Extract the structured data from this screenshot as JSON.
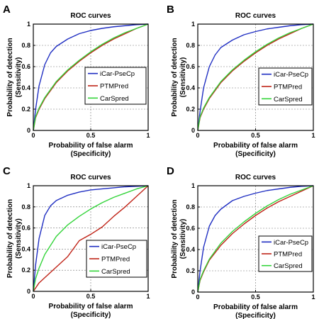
{
  "colors": {
    "iCar-PseCp": "#1f2ec2",
    "PTMPred": "#c02418",
    "CarSpred": "#33d43a"
  },
  "chart_data": [
    {
      "panel": "A",
      "type": "line",
      "title": "ROC curves",
      "xlabel": [
        "Probability of false alarm",
        "(Specificity)"
      ],
      "ylabel": [
        "Probability of detection",
        "(Sensitivity)"
      ],
      "xlim": [
        0,
        1
      ],
      "ylim": [
        0,
        1
      ],
      "xticks": [
        "0",
        "0.5",
        "1"
      ],
      "yticks": [
        "0",
        "0.2",
        "0.4",
        "0.6",
        "0.8",
        "1"
      ],
      "grid": true,
      "legend": "middle-right",
      "series": [
        {
          "name": "iCar-PseCp",
          "x": [
            0,
            0.02,
            0.05,
            0.1,
            0.15,
            0.2,
            0.3,
            0.4,
            0.5,
            0.6,
            0.7,
            0.8,
            0.9,
            1
          ],
          "y": [
            0,
            0.2,
            0.42,
            0.62,
            0.73,
            0.79,
            0.86,
            0.91,
            0.94,
            0.96,
            0.975,
            0.985,
            0.995,
            1
          ]
        },
        {
          "name": "PTMPred",
          "x": [
            0,
            0.02,
            0.05,
            0.1,
            0.2,
            0.3,
            0.4,
            0.5,
            0.6,
            0.7,
            0.8,
            0.9,
            1
          ],
          "y": [
            0,
            0.12,
            0.2,
            0.3,
            0.45,
            0.56,
            0.65,
            0.73,
            0.8,
            0.86,
            0.91,
            0.96,
            1
          ]
        },
        {
          "name": "CarSpred",
          "x": [
            0,
            0.02,
            0.05,
            0.1,
            0.2,
            0.3,
            0.4,
            0.5,
            0.6,
            0.7,
            0.8,
            0.9,
            1
          ],
          "y": [
            0,
            0.13,
            0.21,
            0.31,
            0.46,
            0.57,
            0.66,
            0.74,
            0.81,
            0.87,
            0.92,
            0.96,
            1
          ]
        }
      ]
    },
    {
      "panel": "B",
      "type": "line",
      "title": "ROC curves",
      "xlabel": [
        "Probability of false alarm",
        "(Specificity)"
      ],
      "ylabel": [
        "Probability of detection",
        "(Sensitivity)"
      ],
      "xlim": [
        0,
        1
      ],
      "ylim": [
        0,
        1
      ],
      "xticks": [
        "0",
        "0.5",
        "1"
      ],
      "yticks": [
        "0",
        "0.2",
        "0.4",
        "0.6",
        "0.8",
        "1"
      ],
      "grid": true,
      "legend": "middle-right",
      "series": [
        {
          "name": "iCar-PseCp",
          "x": [
            0,
            0.02,
            0.05,
            0.1,
            0.15,
            0.2,
            0.3,
            0.4,
            0.5,
            0.6,
            0.7,
            0.8,
            0.9,
            1
          ],
          "y": [
            0,
            0.18,
            0.4,
            0.6,
            0.71,
            0.78,
            0.85,
            0.9,
            0.93,
            0.955,
            0.97,
            0.985,
            0.995,
            1
          ]
        },
        {
          "name": "PTMPred",
          "x": [
            0,
            0.02,
            0.05,
            0.1,
            0.2,
            0.3,
            0.4,
            0.5,
            0.6,
            0.7,
            0.8,
            0.9,
            1
          ],
          "y": [
            0,
            0.12,
            0.2,
            0.3,
            0.45,
            0.56,
            0.65,
            0.73,
            0.8,
            0.86,
            0.91,
            0.96,
            1
          ]
        },
        {
          "name": "CarSpred",
          "x": [
            0,
            0.02,
            0.05,
            0.1,
            0.2,
            0.3,
            0.4,
            0.5,
            0.6,
            0.7,
            0.8,
            0.9,
            1
          ],
          "y": [
            0,
            0.13,
            0.21,
            0.31,
            0.46,
            0.57,
            0.66,
            0.74,
            0.81,
            0.87,
            0.92,
            0.96,
            1
          ]
        }
      ]
    },
    {
      "panel": "C",
      "type": "line",
      "title": "ROC curves",
      "xlabel": [
        "Probability of false alarm",
        "(Specificity)"
      ],
      "ylabel": [
        "Probability of detection",
        "(Sensitivity)"
      ],
      "xlim": [
        0,
        1
      ],
      "ylim": [
        0,
        1
      ],
      "xticks": [
        "0",
        "0.5",
        "1"
      ],
      "yticks": [
        "0",
        "0.2",
        "0.4",
        "0.6",
        "0.8",
        "1"
      ],
      "grid": true,
      "legend": "bottom-right",
      "series": [
        {
          "name": "iCar-PseCp",
          "x": [
            0,
            0.02,
            0.05,
            0.1,
            0.15,
            0.2,
            0.3,
            0.4,
            0.5,
            0.6,
            0.7,
            0.8,
            0.9,
            1
          ],
          "y": [
            0,
            0.25,
            0.5,
            0.72,
            0.81,
            0.86,
            0.91,
            0.94,
            0.96,
            0.97,
            0.98,
            0.99,
            0.995,
            1
          ]
        },
        {
          "name": "PTMPred",
          "x": [
            0,
            0.05,
            0.1,
            0.2,
            0.3,
            0.4,
            0.5,
            0.6,
            0.7,
            0.8,
            0.9,
            1
          ],
          "y": [
            0,
            0.08,
            0.13,
            0.23,
            0.33,
            0.48,
            0.54,
            0.61,
            0.71,
            0.8,
            0.9,
            1
          ]
        },
        {
          "name": "CarSpred",
          "x": [
            0,
            0.02,
            0.05,
            0.1,
            0.2,
            0.3,
            0.4,
            0.5,
            0.6,
            0.7,
            0.8,
            0.9,
            1
          ],
          "y": [
            0,
            0.12,
            0.22,
            0.35,
            0.52,
            0.63,
            0.71,
            0.78,
            0.84,
            0.89,
            0.93,
            0.97,
            1
          ]
        }
      ]
    },
    {
      "panel": "D",
      "type": "line",
      "title": "ROC curves",
      "xlabel": [
        "Probability of false alarm",
        "(Specificity)"
      ],
      "ylabel": [
        "Probability of detection",
        "(Sensitivity)"
      ],
      "xlim": [
        0,
        1
      ],
      "ylim": [
        0,
        1
      ],
      "xticks": [
        "0",
        "0.5",
        "1"
      ],
      "yticks": [
        "0",
        "0.2",
        "0.4",
        "0.6",
        "0.8",
        "1"
      ],
      "grid": true,
      "legend": "bottom-right",
      "series": [
        {
          "name": "iCar-PseCp",
          "x": [
            0,
            0.02,
            0.05,
            0.1,
            0.15,
            0.2,
            0.3,
            0.4,
            0.5,
            0.6,
            0.7,
            0.8,
            0.9,
            1
          ],
          "y": [
            0,
            0.2,
            0.42,
            0.62,
            0.72,
            0.78,
            0.86,
            0.9,
            0.93,
            0.955,
            0.97,
            0.985,
            0.995,
            1
          ]
        },
        {
          "name": "PTMPred",
          "x": [
            0,
            0.02,
            0.05,
            0.1,
            0.2,
            0.3,
            0.4,
            0.5,
            0.6,
            0.7,
            0.8,
            0.9,
            1
          ],
          "y": [
            0,
            0.11,
            0.19,
            0.3,
            0.44,
            0.55,
            0.64,
            0.72,
            0.79,
            0.85,
            0.9,
            0.95,
            1
          ]
        },
        {
          "name": "CarSpred",
          "x": [
            0,
            0.02,
            0.05,
            0.1,
            0.2,
            0.3,
            0.4,
            0.5,
            0.6,
            0.7,
            0.8,
            0.9,
            1
          ],
          "y": [
            0,
            0.12,
            0.2,
            0.31,
            0.46,
            0.57,
            0.66,
            0.74,
            0.81,
            0.87,
            0.92,
            0.96,
            1
          ]
        }
      ]
    }
  ]
}
